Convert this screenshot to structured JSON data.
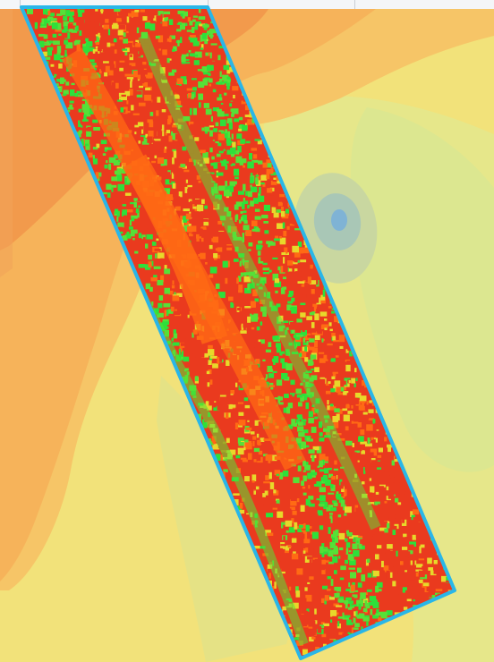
{
  "view": {
    "type": "raster-overlay-map",
    "description_visible_text": ""
  },
  "colors": {
    "background_dark_orange": "#f29a4c",
    "background_orange": "#f6b35a",
    "background_light_orange": "#f6c567",
    "background_yellow": "#f2e27a",
    "background_pale_yellow": "#e8e98a",
    "background_pale_green": "#d9e58f",
    "depression_outer": "#c9d7a0",
    "depression_mid": "#a9c7b6",
    "depression_inner": "#7fb3d5",
    "strip_outline": "#29b6e8",
    "strip_red": "#ea3a1e",
    "strip_orange": "#ff6a14",
    "strip_yellow": "#e8d82a",
    "strip_green": "#56e037",
    "strip_bright_green": "#2ee03a"
  },
  "layers": [
    {
      "name": "interpolated-surface",
      "icon": "contour-fill"
    },
    {
      "name": "drone-index-strip",
      "icon": "raster-tile"
    }
  ]
}
